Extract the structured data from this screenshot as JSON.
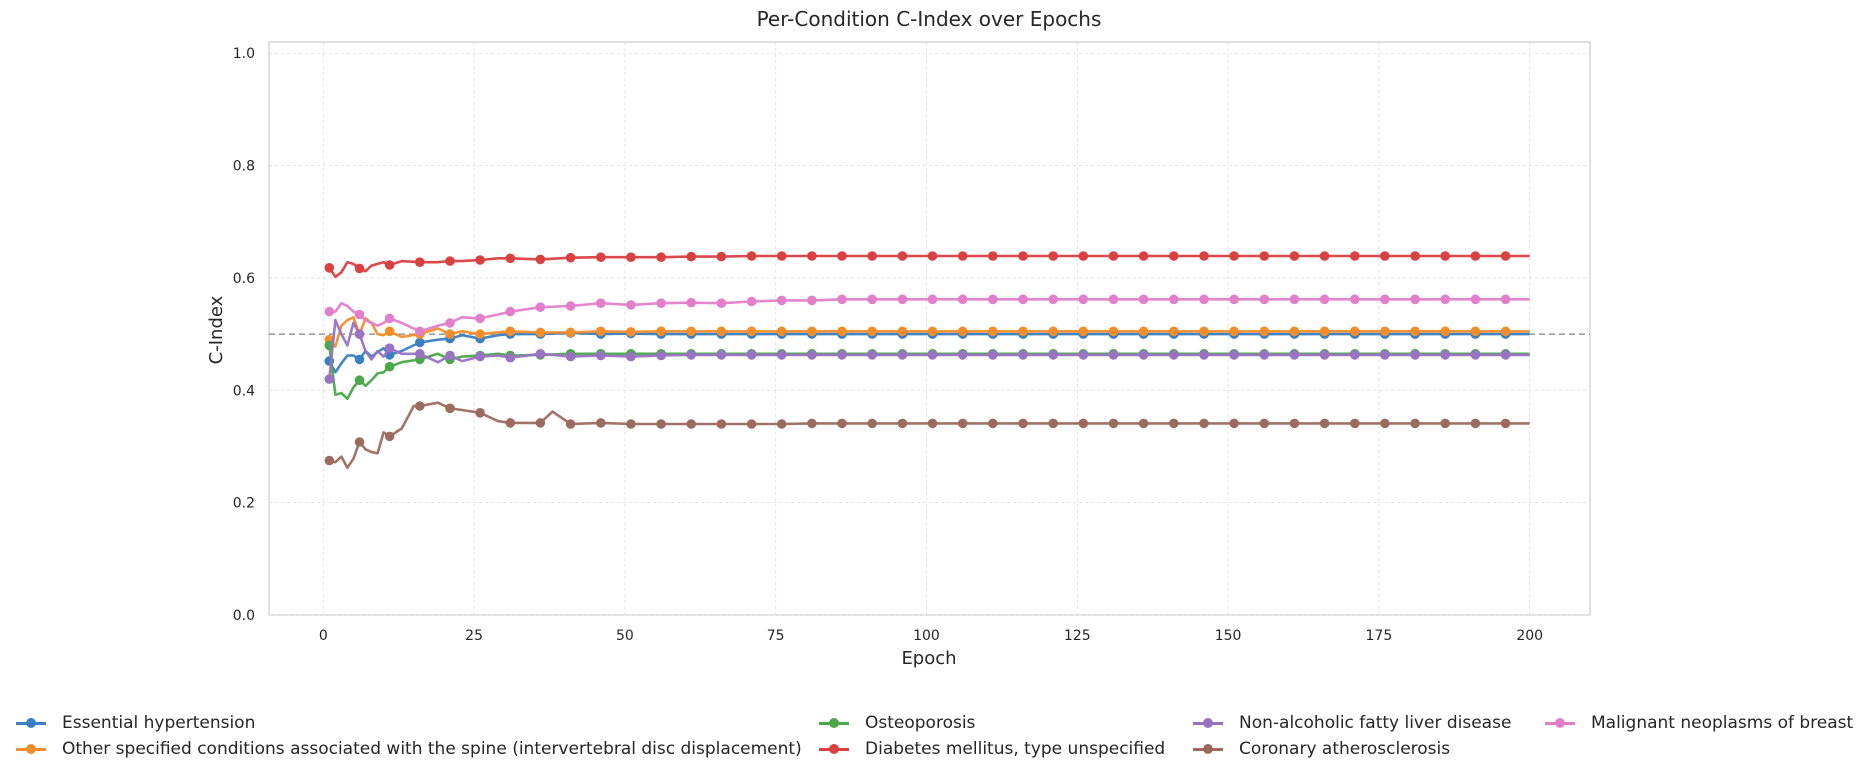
{
  "chart_data": {
    "type": "line",
    "title": "Per-Condition C-Index over Epochs",
    "xlabel": "Epoch",
    "ylabel": "C-Index",
    "xlim": [
      -9,
      210
    ],
    "ylim": [
      0,
      1.02
    ],
    "xticks": [
      0,
      25,
      50,
      75,
      100,
      125,
      150,
      175,
      200
    ],
    "yticks": [
      0.0,
      0.2,
      0.4,
      0.6,
      0.8,
      1.0
    ],
    "xtick_labels": [
      "0",
      "25",
      "50",
      "75",
      "100",
      "125",
      "150",
      "175",
      "200"
    ],
    "ytick_labels": [
      "0.0",
      "0.2",
      "0.4",
      "0.6",
      "0.8",
      "1.0"
    ],
    "reference_line": 0.5,
    "grid": true,
    "legend_position": "bottom",
    "series": [
      {
        "name": "Essential hypertension",
        "color": "#3a7fc1",
        "x": [
          1,
          2,
          3,
          4,
          5,
          6,
          7,
          8,
          9,
          10,
          11,
          13,
          16,
          19,
          21,
          23,
          26,
          29,
          31,
          36,
          41,
          46,
          51,
          56,
          61,
          66,
          71,
          76,
          81,
          86,
          91,
          96,
          101,
          106,
          111,
          116,
          121,
          126,
          131,
          136,
          141,
          146,
          151,
          156,
          161,
          166,
          171,
          176,
          181,
          186,
          191,
          196,
          200
        ],
        "y": [
          0.452,
          0.432,
          0.448,
          0.462,
          0.462,
          0.455,
          0.47,
          0.46,
          0.468,
          0.475,
          0.463,
          0.47,
          0.485,
          0.49,
          0.492,
          0.498,
          0.492,
          0.498,
          0.5,
          0.5,
          0.502,
          0.5,
          0.501,
          0.5,
          0.5,
          0.5,
          0.5,
          0.5,
          0.5,
          0.5,
          0.5,
          0.5,
          0.5,
          0.5,
          0.5,
          0.5,
          0.5,
          0.5,
          0.5,
          0.5,
          0.5,
          0.5,
          0.5,
          0.5,
          0.5,
          0.5,
          0.5,
          0.5,
          0.5,
          0.5,
          0.5,
          0.5,
          0.5
        ]
      },
      {
        "name": "Other specified conditions associated with the spine (intervertebral disc displacement)",
        "color": "#f28e2b",
        "x": [
          1,
          2,
          3,
          4,
          5,
          6,
          7,
          8,
          9,
          10,
          11,
          13,
          16,
          19,
          21,
          23,
          26,
          29,
          31,
          36,
          41,
          46,
          51,
          56,
          61,
          66,
          71,
          76,
          81,
          86,
          91,
          96,
          101,
          106,
          111,
          116,
          121,
          126,
          131,
          136,
          141,
          146,
          151,
          156,
          161,
          166,
          171,
          176,
          181,
          186,
          191,
          196,
          200
        ],
        "y": [
          0.49,
          0.478,
          0.515,
          0.525,
          0.53,
          0.5,
          0.528,
          0.52,
          0.5,
          0.498,
          0.505,
          0.495,
          0.5,
          0.51,
          0.5,
          0.505,
          0.5,
          0.503,
          0.505,
          0.503,
          0.503,
          0.505,
          0.504,
          0.505,
          0.505,
          0.505,
          0.505,
          0.505,
          0.505,
          0.505,
          0.505,
          0.505,
          0.505,
          0.505,
          0.505,
          0.505,
          0.505,
          0.505,
          0.505,
          0.505,
          0.505,
          0.505,
          0.505,
          0.505,
          0.505,
          0.505,
          0.505,
          0.505,
          0.505,
          0.505,
          0.505,
          0.505,
          0.505
        ]
      },
      {
        "name": "Osteoporosis",
        "color": "#4aa84a",
        "x": [
          1,
          2,
          3,
          4,
          5,
          6,
          7,
          8,
          9,
          10,
          11,
          13,
          16,
          19,
          21,
          23,
          26,
          29,
          31,
          36,
          41,
          46,
          51,
          56,
          61,
          66,
          71,
          76,
          81,
          86,
          91,
          96,
          101,
          106,
          111,
          116,
          121,
          126,
          131,
          136,
          141,
          146,
          151,
          156,
          161,
          166,
          171,
          176,
          181,
          186,
          191,
          196,
          200
        ],
        "y": [
          0.48,
          0.392,
          0.395,
          0.385,
          0.405,
          0.418,
          0.408,
          0.418,
          0.43,
          0.432,
          0.442,
          0.45,
          0.455,
          0.465,
          0.455,
          0.46,
          0.462,
          0.465,
          0.462,
          0.463,
          0.465,
          0.465,
          0.465,
          0.465,
          0.465,
          0.465,
          0.465,
          0.465,
          0.465,
          0.465,
          0.465,
          0.465,
          0.465,
          0.465,
          0.465,
          0.465,
          0.465,
          0.465,
          0.465,
          0.465,
          0.465,
          0.465,
          0.465,
          0.465,
          0.465,
          0.465,
          0.465,
          0.465,
          0.465,
          0.465,
          0.465,
          0.465,
          0.465
        ]
      },
      {
        "name": "Diabetes mellitus, type unspecified",
        "color": "#d94040",
        "x": [
          1,
          2,
          3,
          4,
          5,
          6,
          7,
          8,
          9,
          10,
          11,
          13,
          16,
          19,
          21,
          23,
          26,
          29,
          31,
          36,
          41,
          46,
          51,
          56,
          61,
          66,
          71,
          76,
          81,
          86,
          91,
          96,
          101,
          106,
          111,
          116,
          121,
          126,
          131,
          136,
          141,
          146,
          151,
          156,
          161,
          166,
          171,
          176,
          181,
          186,
          191,
          196,
          200
        ],
        "y": [
          0.618,
          0.602,
          0.61,
          0.628,
          0.625,
          0.617,
          0.612,
          0.622,
          0.625,
          0.628,
          0.623,
          0.63,
          0.628,
          0.628,
          0.63,
          0.63,
          0.632,
          0.635,
          0.635,
          0.633,
          0.636,
          0.637,
          0.637,
          0.637,
          0.638,
          0.638,
          0.639,
          0.639,
          0.639,
          0.639,
          0.639,
          0.639,
          0.639,
          0.639,
          0.639,
          0.639,
          0.639,
          0.639,
          0.639,
          0.639,
          0.639,
          0.639,
          0.639,
          0.639,
          0.639,
          0.639,
          0.639,
          0.639,
          0.639,
          0.639,
          0.639,
          0.639,
          0.639
        ]
      },
      {
        "name": "Non-alcoholic fatty liver disease",
        "color": "#9a72c2",
        "x": [
          1,
          2,
          3,
          4,
          5,
          6,
          7,
          8,
          9,
          10,
          11,
          13,
          16,
          19,
          21,
          23,
          26,
          29,
          31,
          36,
          41,
          46,
          51,
          56,
          61,
          66,
          71,
          76,
          81,
          86,
          91,
          96,
          101,
          106,
          111,
          116,
          121,
          126,
          131,
          136,
          141,
          146,
          151,
          156,
          161,
          166,
          171,
          176,
          181,
          186,
          191,
          196,
          200
        ],
        "y": [
          0.42,
          0.525,
          0.5,
          0.48,
          0.52,
          0.5,
          0.47,
          0.455,
          0.47,
          0.46,
          0.475,
          0.465,
          0.465,
          0.45,
          0.462,
          0.452,
          0.46,
          0.462,
          0.458,
          0.465,
          0.46,
          0.462,
          0.46,
          0.462,
          0.463,
          0.463,
          0.463,
          0.463,
          0.463,
          0.463,
          0.463,
          0.463,
          0.463,
          0.463,
          0.463,
          0.463,
          0.463,
          0.463,
          0.463,
          0.463,
          0.463,
          0.463,
          0.463,
          0.463,
          0.463,
          0.463,
          0.463,
          0.463,
          0.463,
          0.463,
          0.463,
          0.463,
          0.463
        ]
      },
      {
        "name": "Coronary atherosclerosis",
        "color": "#9c6b60",
        "x": [
          1,
          2,
          3,
          4,
          5,
          6,
          7,
          8,
          9,
          10,
          11,
          13,
          15,
          16,
          19,
          21,
          23,
          26,
          29,
          31,
          36,
          38,
          41,
          46,
          51,
          56,
          61,
          66,
          71,
          76,
          81,
          86,
          91,
          96,
          101,
          106,
          111,
          116,
          121,
          126,
          131,
          136,
          141,
          146,
          151,
          156,
          161,
          166,
          171,
          176,
          181,
          186,
          191,
          196,
          200
        ],
        "y": [
          0.275,
          0.272,
          0.282,
          0.262,
          0.278,
          0.308,
          0.295,
          0.29,
          0.288,
          0.325,
          0.318,
          0.332,
          0.372,
          0.372,
          0.378,
          0.368,
          0.365,
          0.36,
          0.345,
          0.342,
          0.342,
          0.362,
          0.34,
          0.342,
          0.34,
          0.34,
          0.34,
          0.34,
          0.34,
          0.34,
          0.341,
          0.341,
          0.341,
          0.341,
          0.341,
          0.341,
          0.341,
          0.341,
          0.341,
          0.341,
          0.341,
          0.341,
          0.341,
          0.341,
          0.341,
          0.341,
          0.341,
          0.341,
          0.341,
          0.341,
          0.341,
          0.341,
          0.341,
          0.341,
          0.341
        ]
      },
      {
        "name": "Malignant neoplasms of breast",
        "color": "#e27fcb",
        "x": [
          1,
          2,
          3,
          4,
          5,
          6,
          7,
          8,
          9,
          10,
          11,
          13,
          16,
          19,
          21,
          23,
          26,
          29,
          31,
          36,
          41,
          46,
          51,
          56,
          61,
          66,
          71,
          76,
          81,
          86,
          91,
          96,
          101,
          106,
          111,
          116,
          121,
          126,
          131,
          136,
          141,
          146,
          151,
          156,
          161,
          166,
          171,
          176,
          181,
          186,
          191,
          196,
          200
        ],
        "y": [
          0.54,
          0.54,
          0.555,
          0.55,
          0.54,
          0.535,
          0.525,
          0.52,
          0.515,
          0.52,
          0.528,
          0.52,
          0.505,
          0.515,
          0.52,
          0.53,
          0.528,
          0.535,
          0.54,
          0.548,
          0.55,
          0.555,
          0.552,
          0.555,
          0.556,
          0.555,
          0.558,
          0.56,
          0.56,
          0.562,
          0.562,
          0.562,
          0.562,
          0.562,
          0.562,
          0.562,
          0.562,
          0.562,
          0.562,
          0.562,
          0.562,
          0.562,
          0.562,
          0.562,
          0.562,
          0.562,
          0.562,
          0.562,
          0.562,
          0.562,
          0.562,
          0.562,
          0.562
        ]
      }
    ]
  }
}
